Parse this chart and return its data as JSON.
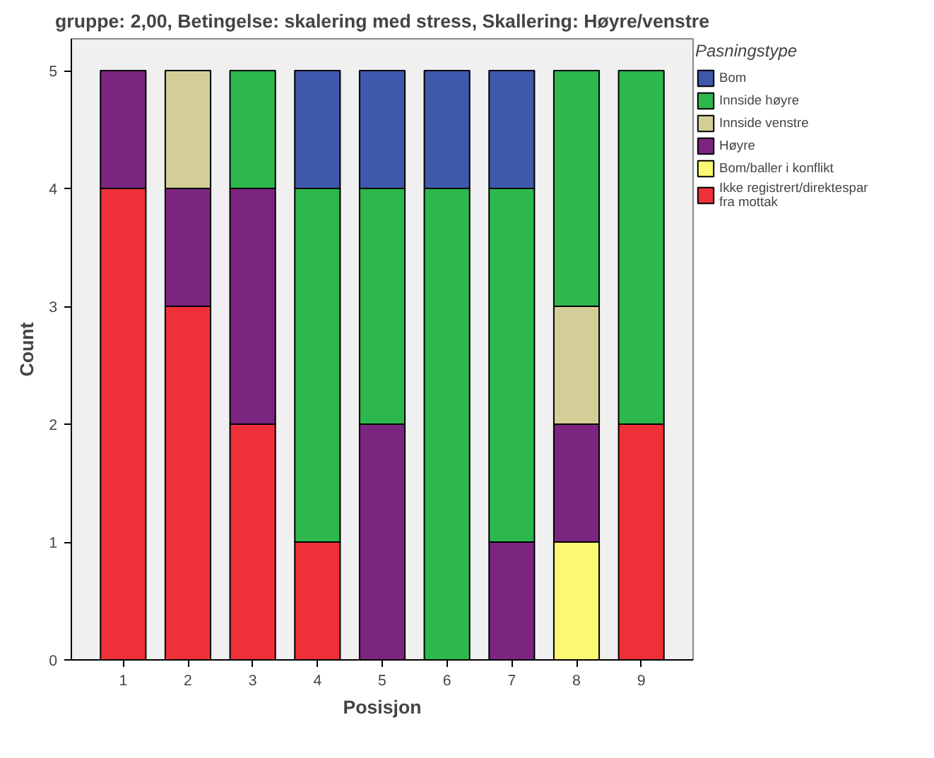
{
  "chart_data": {
    "type": "bar",
    "stacked": true,
    "title": "gruppe: 2,00, Betingelse: skalering med stress, Skallering: Høyre/venstre",
    "xlabel": "Posisjon",
    "ylabel": "Count",
    "legend_title": "Pasningstype",
    "legend": "right",
    "categories": [
      "1",
      "2",
      "3",
      "4",
      "5",
      "6",
      "7",
      "8",
      "9"
    ],
    "series": [
      {
        "name": "Ikke registrert/direktespar fra mottak",
        "color": "#ef3038",
        "values": [
          4,
          3,
          2,
          1,
          null,
          null,
          null,
          null,
          2
        ]
      },
      {
        "name": "Bom/baller i konflikt",
        "color": "#fbf873",
        "values": [
          null,
          null,
          null,
          null,
          null,
          null,
          null,
          1,
          null
        ]
      },
      {
        "name": "Høyre",
        "color": "#7b2580",
        "values": [
          1,
          1,
          2,
          null,
          2,
          null,
          1,
          1,
          null
        ]
      },
      {
        "name": "Innside venstre",
        "color": "#d3ce97",
        "values": [
          null,
          1,
          null,
          null,
          null,
          null,
          null,
          1,
          null
        ]
      },
      {
        "name": "Innside høyre",
        "color": "#2db84d",
        "values": [
          null,
          null,
          1,
          3,
          2,
          4,
          3,
          2,
          3
        ]
      },
      {
        "name": "Bom",
        "color": "#3e58ac",
        "values": [
          null,
          null,
          null,
          1,
          1,
          1,
          1,
          null,
          null
        ]
      }
    ],
    "ylim": [
      0,
      5.27
    ],
    "yticks": [
      0,
      1,
      2,
      3,
      4,
      5
    ],
    "grid": false
  }
}
